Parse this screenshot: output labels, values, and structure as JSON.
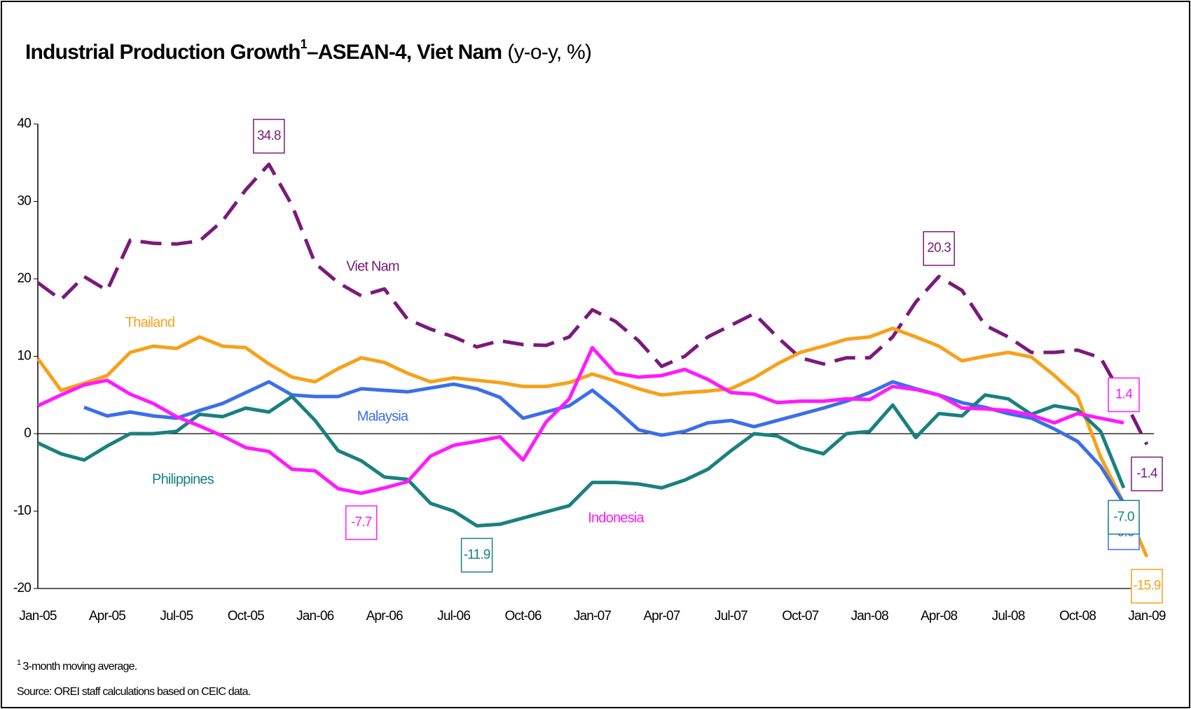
{
  "chart_data": {
    "type": "line",
    "title": "Industrial Production Growth",
    "title_superscript": "1",
    "title_cont": "–ASEAN-4, Viet Nam",
    "title_unit": "(y-o-y, %)",
    "footnote_mark": "1",
    "footnote": "3-month moving average.",
    "source": "Source: OREI staff calculations based on CEIC data.",
    "categories": [
      "Jan-05",
      null,
      null,
      "Apr-05",
      null,
      null,
      "Jul-05",
      null,
      null,
      "Oct-05",
      null,
      null,
      "Jan-06",
      null,
      null,
      "Apr-06",
      null,
      null,
      "Jul-06",
      null,
      null,
      "Oct-06",
      null,
      null,
      "Jan-07",
      null,
      null,
      "Apr-07",
      null,
      null,
      "Jul-07",
      null,
      null,
      "Oct-07",
      null,
      null,
      "Jan-08",
      null,
      null,
      "Apr-08",
      null,
      null,
      "Jul-08",
      null,
      null,
      "Oct-08",
      null,
      null,
      "Jan-09"
    ],
    "ylim": [
      -20,
      40
    ],
    "yticks": [
      -20,
      -10,
      0,
      10,
      20,
      30,
      40
    ],
    "grid": false,
    "series": [
      {
        "name": "Viet Nam",
        "color": "#7a1a7a",
        "style": "dashed",
        "values": [
          19.5,
          17.3,
          20.3,
          18.5,
          25,
          24.6,
          24.5,
          24.9,
          27.5,
          31.5,
          34.8,
          29.5,
          22,
          19.5,
          17.8,
          18.7,
          14.8,
          13.5,
          12.5,
          11.2,
          12,
          11.5,
          11.4,
          12.5,
          16,
          14.5,
          12,
          8.7,
          10,
          12.5,
          14,
          15.5,
          12.5,
          9.8,
          9,
          9.8,
          9.8,
          12.5,
          17,
          20.3,
          18.5,
          14,
          12.5,
          10.5,
          10.5,
          10.8,
          9.8,
          4.5,
          -1.4
        ],
        "value_labels": [
          null,
          null,
          null,
          null,
          null,
          null,
          null,
          null,
          null,
          null,
          "34.8",
          null,
          null,
          null,
          null,
          null,
          null,
          null,
          null,
          null,
          null,
          null,
          null,
          null,
          null,
          null,
          null,
          null,
          null,
          null,
          null,
          null,
          null,
          null,
          null,
          null,
          null,
          null,
          null,
          "20.3",
          null,
          null,
          null,
          null,
          null,
          null,
          null,
          null,
          "-1.4"
        ]
      },
      {
        "name": "Thailand",
        "color": "#f7a11a",
        "style": "solid",
        "values": [
          9.7,
          5.6,
          6.5,
          7.5,
          10.5,
          11.3,
          11.0,
          12.5,
          11.3,
          11.1,
          9.0,
          7.3,
          6.7,
          8.4,
          9.8,
          9.2,
          7.8,
          6.7,
          7.2,
          6.9,
          6.6,
          6.1,
          6.1,
          6.6,
          7.7,
          6.8,
          5.8,
          5.0,
          5.3,
          5.5,
          5.8,
          7.2,
          9.0,
          10.5,
          11.3,
          12.2,
          12.5,
          13.6,
          12.5,
          11.3,
          9.4,
          10.0,
          10.5,
          9.9,
          7.5,
          4.8,
          -3.0,
          -9.0,
          -15.9
        ],
        "value_labels": [
          null,
          null,
          null,
          null,
          null,
          null,
          null,
          null,
          null,
          null,
          null,
          null,
          null,
          null,
          null,
          null,
          null,
          null,
          null,
          null,
          null,
          null,
          null,
          null,
          null,
          null,
          null,
          null,
          null,
          null,
          null,
          null,
          null,
          null,
          null,
          null,
          null,
          null,
          null,
          null,
          null,
          null,
          null,
          null,
          null,
          null,
          null,
          null,
          "-15.9"
        ]
      },
      {
        "name": "Malaysia",
        "color": "#3b6fe8",
        "style": "solid",
        "values": [
          null,
          null,
          3.4,
          2.3,
          2.8,
          2.3,
          2.0,
          3.0,
          3.9,
          5.3,
          6.7,
          5.0,
          4.8,
          4.8,
          5.8,
          5.6,
          5.4,
          5.9,
          6.4,
          5.8,
          4.7,
          2.0,
          2.8,
          3.6,
          5.6,
          3.2,
          0.5,
          -0.2,
          0.3,
          1.4,
          1.7,
          0.9,
          1.7,
          2.5,
          3.3,
          4.2,
          5.3,
          6.7,
          5.8,
          5.0,
          4.0,
          3.4,
          2.6,
          2.0,
          0.6,
          -1.0,
          -4.2,
          -9.0,
          null
        ],
        "value_labels": [
          null,
          null,
          null,
          null,
          null,
          null,
          null,
          null,
          null,
          null,
          null,
          null,
          null,
          null,
          null,
          null,
          null,
          null,
          null,
          null,
          null,
          null,
          null,
          null,
          null,
          null,
          null,
          null,
          null,
          null,
          null,
          null,
          null,
          null,
          null,
          null,
          null,
          null,
          null,
          null,
          null,
          null,
          null,
          null,
          null,
          null,
          null,
          "-9.0",
          null
        ]
      },
      {
        "name": "Philippines",
        "color": "#1a8080",
        "style": "solid",
        "values": [
          -1.2,
          -2.6,
          -3.4,
          -1.6,
          0,
          0,
          0.3,
          2.5,
          2.2,
          3.3,
          2.8,
          4.8,
          1.7,
          -2.2,
          -3.5,
          -5.6,
          -5.9,
          -9.0,
          -10.0,
          -11.9,
          -11.7,
          -10.9,
          -10.1,
          -9.3,
          -6.3,
          -6.3,
          -6.5,
          -7.0,
          -6.0,
          -4.6,
          -2.2,
          0,
          -0.3,
          -1.8,
          -2.6,
          0,
          0.3,
          3.7,
          -0.5,
          2.6,
          2.3,
          5.0,
          4.5,
          2.5,
          3.6,
          3.1,
          0.3,
          -7.0,
          null
        ],
        "value_labels": [
          null,
          null,
          null,
          null,
          null,
          null,
          null,
          null,
          null,
          null,
          null,
          null,
          null,
          null,
          null,
          null,
          null,
          null,
          null,
          "-11.9",
          null,
          null,
          null,
          null,
          null,
          null,
          null,
          null,
          null,
          null,
          null,
          null,
          null,
          null,
          null,
          null,
          null,
          null,
          null,
          null,
          null,
          null,
          null,
          null,
          null,
          null,
          null,
          "-7.0",
          null
        ]
      },
      {
        "name": "Indonesia",
        "color": "#ff1aff",
        "style": "solid",
        "values": [
          3.6,
          5.0,
          6.3,
          6.9,
          5.1,
          3.9,
          2.2,
          1.0,
          -0.3,
          -1.8,
          -2.3,
          -4.6,
          -4.8,
          -7.1,
          -7.7,
          -7.0,
          -6.2,
          -2.9,
          -1.5,
          -1.0,
          -0.4,
          -3.4,
          1.5,
          4.5,
          11.1,
          7.8,
          7.3,
          7.5,
          8.3,
          7.0,
          5.3,
          5.1,
          4.0,
          4.2,
          4.2,
          4.5,
          4.4,
          6.1,
          5.7,
          5.0,
          3.3,
          3.2,
          3.0,
          2.4,
          1.4,
          2.6,
          2.0,
          1.4,
          null
        ],
        "value_labels": [
          null,
          null,
          null,
          null,
          null,
          null,
          null,
          null,
          null,
          null,
          null,
          null,
          null,
          null,
          "-7.7",
          null,
          null,
          null,
          null,
          null,
          null,
          null,
          null,
          null,
          null,
          null,
          null,
          null,
          null,
          null,
          null,
          null,
          null,
          null,
          null,
          null,
          null,
          null,
          null,
          null,
          null,
          null,
          null,
          null,
          null,
          null,
          null,
          "1.4",
          null
        ]
      }
    ]
  }
}
